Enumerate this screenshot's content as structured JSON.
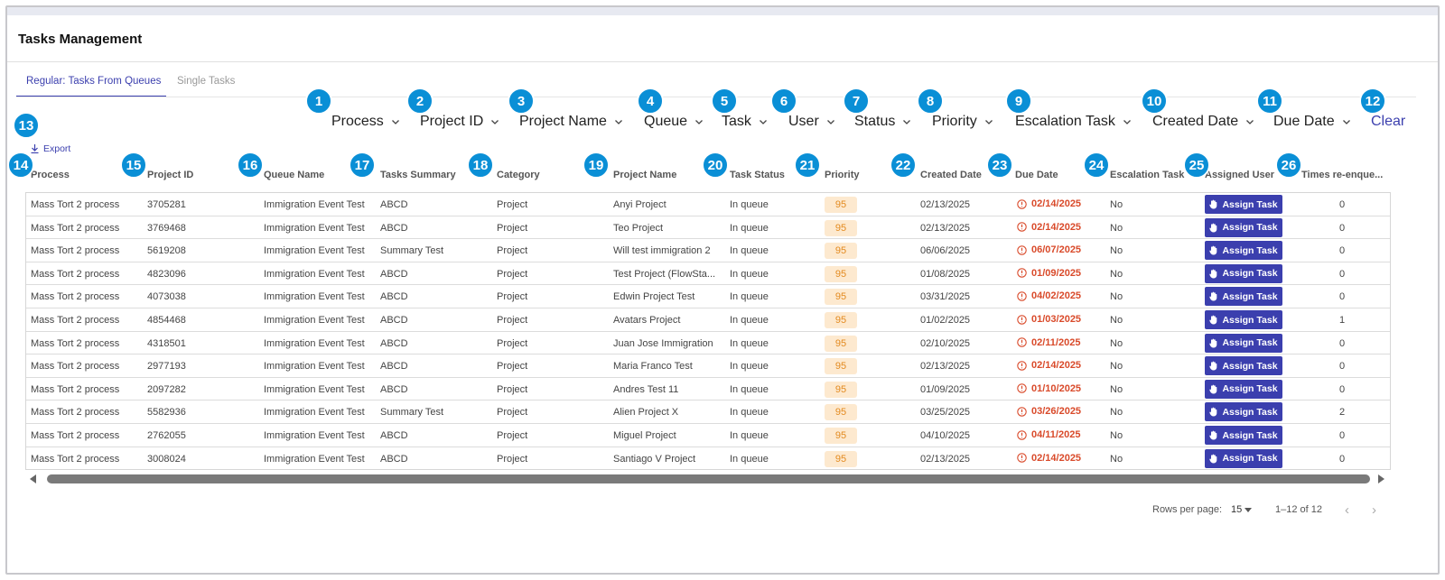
{
  "page": {
    "title": "Tasks Management"
  },
  "tabs": [
    {
      "label": "Regular: Tasks From Queues",
      "active": true
    },
    {
      "label": "Single Tasks",
      "active": false
    }
  ],
  "filters": [
    {
      "badge": "1",
      "label": "Process"
    },
    {
      "badge": "2",
      "label": "Project ID"
    },
    {
      "badge": "3",
      "label": "Project Name"
    },
    {
      "badge": "4",
      "label": "Queue"
    },
    {
      "badge": "5",
      "label": "Task"
    },
    {
      "badge": "6",
      "label": "User"
    },
    {
      "badge": "7",
      "label": "Status"
    },
    {
      "badge": "8",
      "label": "Priority"
    },
    {
      "badge": "9",
      "label": "Escalation Task"
    },
    {
      "badge": "10",
      "label": "Created Date"
    },
    {
      "badge": "11",
      "label": "Due Date"
    }
  ],
  "clear": {
    "badge": "12",
    "label": "Clear"
  },
  "export": {
    "badge": "13",
    "label": "Export"
  },
  "columns": [
    {
      "badge": "14",
      "label": "Process"
    },
    {
      "badge": "15",
      "label": "Project ID"
    },
    {
      "badge": "16",
      "label": "Queue Name"
    },
    {
      "badge": "17",
      "label": "Tasks Summary"
    },
    {
      "badge": "18",
      "label": "Category"
    },
    {
      "badge": "19",
      "label": "Project Name"
    },
    {
      "badge": "20",
      "label": "Task Status"
    },
    {
      "badge": "21",
      "label": "Priority"
    },
    {
      "badge": "22",
      "label": "Created Date"
    },
    {
      "badge": "23",
      "label": "Due Date"
    },
    {
      "badge": "24",
      "label": "Escalation Task"
    },
    {
      "badge": "25",
      "label": "Assigned User"
    },
    {
      "badge": "26",
      "label": "Times re-enque..."
    }
  ],
  "assign_label": "Assign Task",
  "rows": [
    {
      "process": "Mass Tort 2 process",
      "project_id": "3705281",
      "queue": "Immigration Event Test",
      "summary": "ABCD",
      "category": "Project",
      "project_name": "Anyi Project",
      "status": "In queue",
      "priority": "95",
      "created": "02/13/2025",
      "due": "02/14/2025",
      "escalation": "No",
      "times": "0"
    },
    {
      "process": "Mass Tort 2 process",
      "project_id": "3769468",
      "queue": "Immigration Event Test",
      "summary": "ABCD",
      "category": "Project",
      "project_name": "Teo Project",
      "status": "In queue",
      "priority": "95",
      "created": "02/13/2025",
      "due": "02/14/2025",
      "escalation": "No",
      "times": "0"
    },
    {
      "process": "Mass Tort 2 process",
      "project_id": "5619208",
      "queue": "Immigration Event Test",
      "summary": "Summary Test",
      "category": "Project",
      "project_name": "Will test immigration 2",
      "status": "In queue",
      "priority": "95",
      "created": "06/06/2025",
      "due": "06/07/2025",
      "escalation": "No",
      "times": "0"
    },
    {
      "process": "Mass Tort 2 process",
      "project_id": "4823096",
      "queue": "Immigration Event Test",
      "summary": "ABCD",
      "category": "Project",
      "project_name": "Test Project (FlowSta...",
      "status": "In queue",
      "priority": "95",
      "created": "01/08/2025",
      "due": "01/09/2025",
      "escalation": "No",
      "times": "0"
    },
    {
      "process": "Mass Tort 2 process",
      "project_id": "4073038",
      "queue": "Immigration Event Test",
      "summary": "ABCD",
      "category": "Project",
      "project_name": "Edwin Project Test",
      "status": "In queue",
      "priority": "95",
      "created": "03/31/2025",
      "due": "04/02/2025",
      "escalation": "No",
      "times": "0"
    },
    {
      "process": "Mass Tort 2 process",
      "project_id": "4854468",
      "queue": "Immigration Event Test",
      "summary": "ABCD",
      "category": "Project",
      "project_name": "Avatars Project",
      "status": "In queue",
      "priority": "95",
      "created": "01/02/2025",
      "due": "01/03/2025",
      "escalation": "No",
      "times": "1"
    },
    {
      "process": "Mass Tort 2 process",
      "project_id": "4318501",
      "queue": "Immigration Event Test",
      "summary": "ABCD",
      "category": "Project",
      "project_name": "Juan Jose Immigration",
      "status": "In queue",
      "priority": "95",
      "created": "02/10/2025",
      "due": "02/11/2025",
      "escalation": "No",
      "times": "0"
    },
    {
      "process": "Mass Tort 2 process",
      "project_id": "2977193",
      "queue": "Immigration Event Test",
      "summary": "ABCD",
      "category": "Project",
      "project_name": "Maria Franco Test",
      "status": "In queue",
      "priority": "95",
      "created": "02/13/2025",
      "due": "02/14/2025",
      "escalation": "No",
      "times": "0"
    },
    {
      "process": "Mass Tort 2 process",
      "project_id": "2097282",
      "queue": "Immigration Event Test",
      "summary": "ABCD",
      "category": "Project",
      "project_name": "Andres Test 11",
      "status": "In queue",
      "priority": "95",
      "created": "01/09/2025",
      "due": "01/10/2025",
      "escalation": "No",
      "times": "0"
    },
    {
      "process": "Mass Tort 2 process",
      "project_id": "5582936",
      "queue": "Immigration Event Test",
      "summary": "Summary Test",
      "category": "Project",
      "project_name": "Alien Project X",
      "status": "In queue",
      "priority": "95",
      "created": "03/25/2025",
      "due": "03/26/2025",
      "escalation": "No",
      "times": "2"
    },
    {
      "process": "Mass Tort 2 process",
      "project_id": "2762055",
      "queue": "Immigration Event Test",
      "summary": "ABCD",
      "category": "Project",
      "project_name": "Miguel Project",
      "status": "In queue",
      "priority": "95",
      "created": "04/10/2025",
      "due": "04/11/2025",
      "escalation": "No",
      "times": "0"
    },
    {
      "process": "Mass Tort 2 process",
      "project_id": "3008024",
      "queue": "Immigration Event Test",
      "summary": "ABCD",
      "category": "Project",
      "project_name": "Santiago V Project",
      "status": "In queue",
      "priority": "95",
      "created": "02/13/2025",
      "due": "02/14/2025",
      "escalation": "No",
      "times": "0"
    }
  ],
  "pagination": {
    "rows_per_page_label": "Rows per page:",
    "rows_per_page": "15",
    "range": "1–12 of 12"
  },
  "colors": {
    "accent": "#3b3fae",
    "badge": "#0a8fd6",
    "due": "#d94a2a",
    "priority_bg": "#fde9cf",
    "priority_fg": "#e38a1f"
  },
  "icons": {
    "filter": "chevron-down-icon",
    "export": "download-icon",
    "due": "clock-alert-icon",
    "assign": "hand-icon"
  }
}
